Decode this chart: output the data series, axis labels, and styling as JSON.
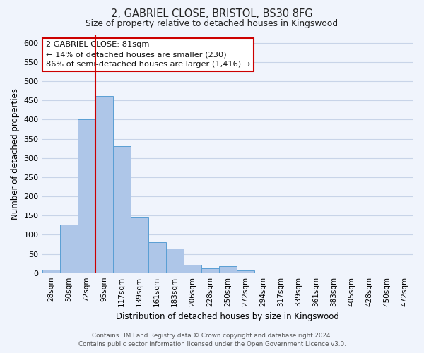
{
  "title": "2, GABRIEL CLOSE, BRISTOL, BS30 8FG",
  "subtitle": "Size of property relative to detached houses in Kingswood",
  "xlabel": "Distribution of detached houses by size in Kingswood",
  "ylabel": "Number of detached properties",
  "bin_labels": [
    "28sqm",
    "50sqm",
    "72sqm",
    "95sqm",
    "117sqm",
    "139sqm",
    "161sqm",
    "183sqm",
    "206sqm",
    "228sqm",
    "250sqm",
    "272sqm",
    "294sqm",
    "317sqm",
    "339sqm",
    "361sqm",
    "383sqm",
    "405sqm",
    "428sqm",
    "450sqm",
    "472sqm"
  ],
  "bar_heights": [
    8,
    127,
    400,
    462,
    330,
    145,
    80,
    64,
    22,
    12,
    17,
    6,
    1,
    0,
    0,
    0,
    0,
    0,
    0,
    0,
    2
  ],
  "bar_color": "#aec6e8",
  "bar_edge_color": "#5a9fd4",
  "ylim": [
    0,
    620
  ],
  "yticks": [
    0,
    50,
    100,
    150,
    200,
    250,
    300,
    350,
    400,
    450,
    500,
    550,
    600
  ],
  "vline_x": 3,
  "vline_color": "#cc0000",
  "annotation_title": "2 GABRIEL CLOSE: 81sqm",
  "annotation_line1": "← 14% of detached houses are smaller (230)",
  "annotation_line2": "86% of semi-detached houses are larger (1,416) →",
  "annotation_box_color": "#ffffff",
  "annotation_box_edge": "#cc0000",
  "footer_line1": "Contains HM Land Registry data © Crown copyright and database right 2024.",
  "footer_line2": "Contains public sector information licensed under the Open Government Licence v3.0.",
  "bg_color": "#f0f4fc",
  "grid_color": "#c8d4e8"
}
